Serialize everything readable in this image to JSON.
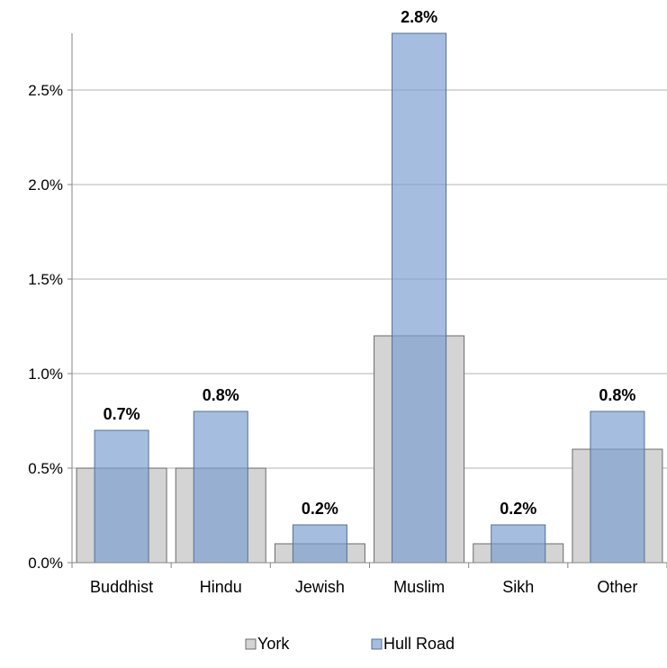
{
  "chart_data": {
    "type": "bar",
    "categories": [
      "Buddhist",
      "Hindu",
      "Jewish",
      "Muslim",
      "Sikh",
      "Other"
    ],
    "series": [
      {
        "name": "York",
        "values": [
          0.5,
          0.5,
          0.1,
          1.2,
          0.1,
          0.6
        ],
        "color": "#d4d4d4",
        "stroke": "#6b6b6b"
      },
      {
        "name": "Hull Road",
        "values": [
          0.7,
          0.8,
          0.2,
          2.8,
          0.2,
          0.8
        ],
        "color": "#7a9fd1",
        "stroke": "#556f92"
      }
    ],
    "data_labels": [
      "0.7%",
      "0.8%",
      "0.2%",
      "2.8%",
      "0.2%",
      "0.8%"
    ],
    "y_ticks": [
      "0.0%",
      "0.5%",
      "1.0%",
      "1.5%",
      "2.0%",
      "2.5%"
    ],
    "ylim": [
      0,
      2.8
    ],
    "grid": true,
    "legend_position": "bottom",
    "legend": [
      "York",
      "Hull Road"
    ]
  }
}
